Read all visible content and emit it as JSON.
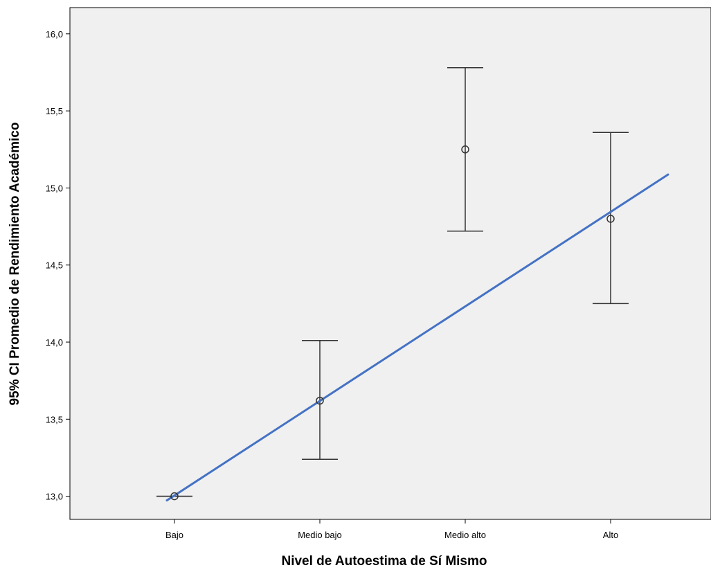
{
  "chart_data": {
    "type": "scatter",
    "title": "",
    "xlabel": "Nivel de Autoestima de Sí Mismo",
    "ylabel": "95% CI Promedio de Rendimiento Académico",
    "categories": [
      "Bajo",
      "Medio bajo",
      "Medio alto",
      "Alto"
    ],
    "series": [
      {
        "means": [
          13.0,
          13.62,
          15.25,
          14.8
        ],
        "ci_lower": [
          13.0,
          13.24,
          14.72,
          14.25
        ],
        "ci_upper": [
          13.0,
          14.01,
          15.78,
          15.36
        ]
      }
    ],
    "fit_line": {
      "start": [
        0.0,
        12.97
      ],
      "end": [
        3.4,
        15.09
      ]
    },
    "ylim": [
      12.85,
      16.17
    ],
    "yticks": [
      13.0,
      13.5,
      14.0,
      14.5,
      15.0,
      15.5,
      16.0
    ],
    "ytick_labels": [
      "13,0",
      "13,5",
      "14,0",
      "14,5",
      "15,0",
      "15,5",
      "16,0"
    ],
    "grid": false,
    "legend": "none",
    "colors": {
      "plot_background": "#f0f0f0",
      "error_bar": "#333333",
      "marker": "#333333",
      "fit_line": "#4472c4"
    }
  }
}
